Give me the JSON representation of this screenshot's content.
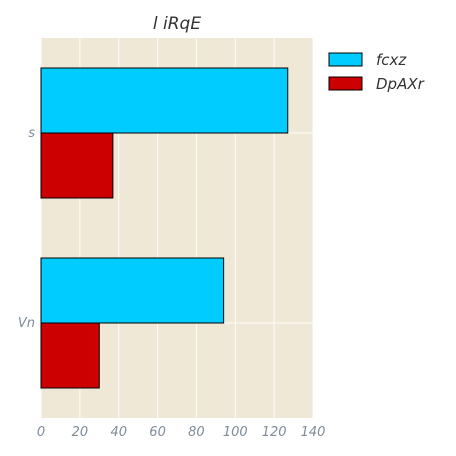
{
  "chart_data": {
    "type": "bar",
    "orientation": "horizontal",
    "title": "l iRqE",
    "xlabel": "",
    "ylabel": "",
    "categories": [
      "s",
      "Vn"
    ],
    "series": [
      {
        "name": "fcxz",
        "values": [
          127,
          94
        ],
        "color": "#00ccff"
      },
      {
        "name": "DpAXr",
        "values": [
          37,
          30
        ],
        "color": "#cc0000"
      }
    ],
    "xlim": [
      0,
      140
    ],
    "xticks": [
      0,
      20,
      40,
      60,
      80,
      100,
      120,
      140
    ],
    "grid": true,
    "legend_position": "outside-top-right",
    "plot_background": "#efe8d6"
  }
}
